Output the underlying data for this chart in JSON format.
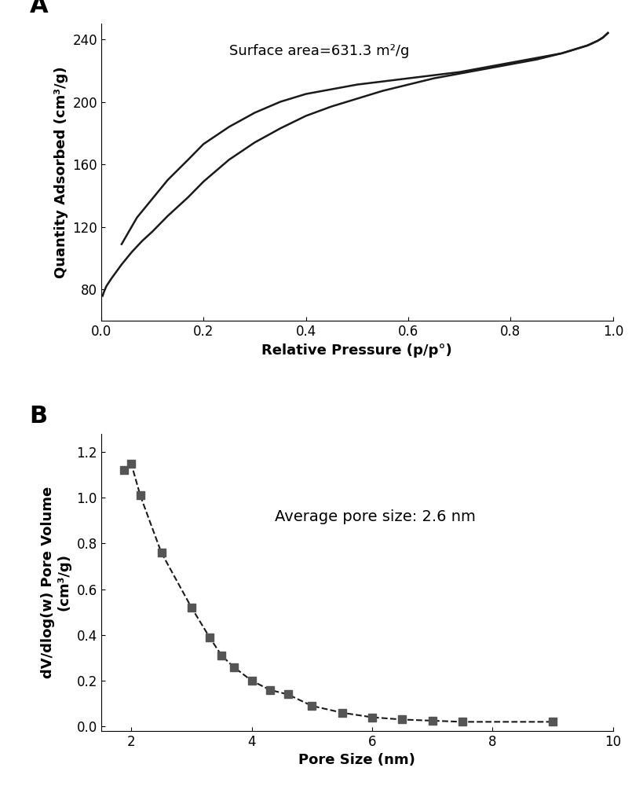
{
  "panel_A": {
    "label": "A",
    "xlabel": "Relative Pressure (p/p°)",
    "ylabel": "Quantity Adsorbed (cm³/g)",
    "annotation": "Surface area=631.3 m²/g",
    "annotation_fontsize": 13,
    "xlim": [
      0.0,
      1.0
    ],
    "ylim": [
      60,
      250
    ],
    "yticks": [
      80,
      120,
      160,
      200,
      240
    ],
    "xticks": [
      0.0,
      0.2,
      0.4,
      0.6,
      0.8,
      1.0
    ],
    "adsorption_x": [
      0.003,
      0.005,
      0.01,
      0.02,
      0.04,
      0.06,
      0.08,
      0.1,
      0.13,
      0.17,
      0.2,
      0.25,
      0.3,
      0.35,
      0.4,
      0.45,
      0.5,
      0.55,
      0.6,
      0.65,
      0.7,
      0.75,
      0.8,
      0.85,
      0.9,
      0.92,
      0.95,
      0.97,
      0.98,
      0.99
    ],
    "adsorption_y": [
      76,
      78,
      82,
      87,
      96,
      104,
      111,
      117,
      127,
      139,
      149,
      163,
      174,
      183,
      191,
      197,
      202,
      207,
      211,
      215,
      218,
      221,
      224,
      227,
      231,
      233,
      236,
      239,
      241,
      244
    ],
    "desorption_x": [
      0.99,
      0.98,
      0.97,
      0.95,
      0.92,
      0.9,
      0.85,
      0.8,
      0.75,
      0.7,
      0.65,
      0.6,
      0.55,
      0.5,
      0.45,
      0.4,
      0.35,
      0.3,
      0.25,
      0.2,
      0.17,
      0.13,
      0.1,
      0.07,
      0.04
    ],
    "desorption_y": [
      244,
      241,
      239,
      236,
      233,
      231,
      228,
      225,
      222,
      219,
      217,
      215,
      213,
      211,
      208,
      205,
      200,
      193,
      184,
      173,
      163,
      150,
      138,
      126,
      109
    ],
    "line_color": "#1a1a1a",
    "line_width": 1.8
  },
  "panel_B": {
    "label": "B",
    "xlabel": "Pore Size (nm)",
    "ylabel": "dV/dlog(w) Pore Volume\n(cm³/g)",
    "annotation": "Average pore size: 2.6 nm",
    "annotation_fontsize": 14,
    "xlim": [
      1.5,
      10.0
    ],
    "ylim": [
      -0.02,
      1.28
    ],
    "xticks": [
      2,
      4,
      6,
      8,
      10
    ],
    "yticks": [
      0.0,
      0.2,
      0.4,
      0.6,
      0.8,
      1.0,
      1.2
    ],
    "x": [
      1.88,
      2.0,
      2.15,
      2.5,
      3.0,
      3.3,
      3.5,
      3.7,
      4.0,
      4.3,
      4.6,
      5.0,
      5.5,
      6.0,
      6.5,
      7.0,
      7.5,
      9.0
    ],
    "y": [
      1.12,
      1.15,
      1.01,
      0.76,
      0.52,
      0.39,
      0.31,
      0.26,
      0.2,
      0.16,
      0.14,
      0.09,
      0.06,
      0.04,
      0.03,
      0.025,
      0.02,
      0.02
    ],
    "marker_color": "#555555",
    "line_color": "#1a1a1a",
    "line_width": 1.5
  },
  "label_fontsize": 22,
  "axis_label_fontsize": 13,
  "tick_fontsize": 12,
  "bg_color": "#ffffff"
}
